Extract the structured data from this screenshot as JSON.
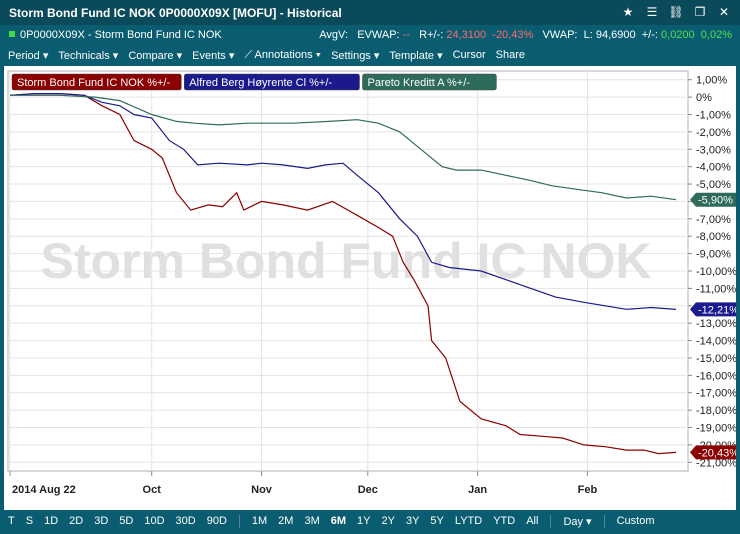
{
  "window": {
    "title": "Storm Bond Fund IC NOK 0P0000X09X [MOFU] - Historical",
    "icons": [
      "star-icon",
      "menu-icon",
      "unlink-icon",
      "restore-icon",
      "close-icon"
    ]
  },
  "infobar": {
    "instrument": "0P0000X09X - Storm Bond Fund IC NOK",
    "avgv_label": "AvgV:",
    "evwap_label": "EVWAP:",
    "evwap_value": "--",
    "r_label": "R+/-:",
    "r_value": "24,3100",
    "r_pct": "-20,43%",
    "vwap_label": "VWAP:",
    "l_label": "L:",
    "l_value": "94,6900",
    "chg_label": "+/-:",
    "chg_value": "0,0200",
    "chg_pct": "0,02%"
  },
  "menu": {
    "period": "Period",
    "technicals": "Technicals",
    "compare": "Compare",
    "events": "Events",
    "annotations": "Annotations",
    "settings": "Settings",
    "template": "Template",
    "cursor": "Cursor",
    "share": "Share"
  },
  "bottom": {
    "left": [
      "T",
      "S",
      "1D",
      "2D",
      "3D",
      "5D",
      "10D",
      "30D",
      "90D"
    ],
    "ranges": [
      "1M",
      "2M",
      "3M",
      "6M",
      "1Y",
      "2Y",
      "3Y",
      "5Y",
      "LYTD",
      "YTD",
      "All"
    ],
    "active": "6M",
    "interval": "Day",
    "custom": "Custom"
  },
  "colors": {
    "storm": "#8b0000",
    "alfred": "#1a1a8c",
    "pareto": "#2e6b5a"
  },
  "chart_data": {
    "type": "line",
    "watermark": "Storm Bond Fund IC NOK",
    "ylim": [
      -21.5,
      1.5
    ],
    "y_ticks": [
      "1,00%",
      "0%",
      "-1,00%",
      "-2,00%",
      "-3,00%",
      "-4,00%",
      "-5,00%",
      "-6,00%",
      "-7,00%",
      "-8,00%",
      "-9,00%",
      "-10,00%",
      "-11,00%",
      "-12,00%",
      "-13,00%",
      "-14,00%",
      "-15,00%",
      "-16,00%",
      "-17,00%",
      "-18,00%",
      "-19,00%",
      "-20,00%",
      "-21,00%"
    ],
    "x_labels": [
      "2014 Aug 22",
      "Oct",
      "Nov",
      "Dec",
      "Jan",
      "Feb"
    ],
    "x_label_dates": [
      "2014-08-22",
      "2014-10-01",
      "2014-11-01",
      "2014-12-01",
      "2015-01-01",
      "2015-02-01"
    ],
    "xlim": [
      "2014-08-22",
      "2015-02-26"
    ],
    "series": [
      {
        "name": "Storm Bond Fund IC NOK %+/-",
        "last_label": "-20,43%",
        "x": [
          "2014-08-22",
          "2014-08-29",
          "2014-09-05",
          "2014-09-12",
          "2014-09-17",
          "2014-09-22",
          "2014-09-26",
          "2014-10-01",
          "2014-10-04",
          "2014-10-08",
          "2014-10-12",
          "2014-10-17",
          "2014-10-21",
          "2014-10-25",
          "2014-10-27",
          "2014-11-01",
          "2014-11-07",
          "2014-11-14",
          "2014-11-21",
          "2014-11-28",
          "2014-12-04",
          "2014-12-08",
          "2014-12-11",
          "2014-12-14",
          "2014-12-18",
          "2014-12-19",
          "2014-12-23",
          "2014-12-27",
          "2015-01-02",
          "2015-01-09",
          "2015-01-13",
          "2015-01-19",
          "2015-01-25",
          "2015-01-31",
          "2015-02-06",
          "2015-02-12",
          "2015-02-17",
          "2015-02-21",
          "2015-02-26"
        ],
        "values": [
          0.1,
          0.2,
          0.2,
          0.1,
          -0.5,
          -1.0,
          -2.5,
          -3.0,
          -3.5,
          -5.5,
          -6.5,
          -6.2,
          -6.3,
          -5.5,
          -6.5,
          -6.0,
          -6.2,
          -6.5,
          -6.0,
          -6.8,
          -7.5,
          -8.0,
          -9.5,
          -10.5,
          -12.0,
          -14.0,
          -15.0,
          -17.5,
          -18.5,
          -18.9,
          -19.4,
          -19.5,
          -19.6,
          -20.0,
          -20.1,
          -20.3,
          -20.3,
          -20.5,
          -20.43
        ]
      },
      {
        "name": "Alfred Berg Høyrente Cl %+/-",
        "last_label": "-12,21%",
        "x": [
          "2014-08-22",
          "2014-08-29",
          "2014-09-05",
          "2014-09-12",
          "2014-09-17",
          "2014-09-22",
          "2014-09-26",
          "2014-10-01",
          "2014-10-06",
          "2014-10-10",
          "2014-10-14",
          "2014-10-20",
          "2014-10-28",
          "2014-11-01",
          "2014-11-07",
          "2014-11-14",
          "2014-11-19",
          "2014-11-24",
          "2014-11-28",
          "2014-12-04",
          "2014-12-10",
          "2014-12-15",
          "2014-12-19",
          "2014-12-24",
          "2015-01-02",
          "2015-01-09",
          "2015-01-16",
          "2015-01-23",
          "2015-01-31",
          "2015-02-06",
          "2015-02-12",
          "2015-02-19",
          "2015-02-26"
        ],
        "values": [
          0.1,
          0.2,
          0.2,
          0.1,
          -0.3,
          -0.5,
          -1.0,
          -1.2,
          -2.5,
          -3.0,
          -3.9,
          -3.8,
          -3.9,
          -3.8,
          -3.9,
          -4.1,
          -3.9,
          -3.8,
          -4.5,
          -5.5,
          -7.0,
          -8.0,
          -9.5,
          -9.8,
          -10.0,
          -10.5,
          -11.0,
          -11.5,
          -11.8,
          -12.0,
          -12.2,
          -12.1,
          -12.21
        ]
      },
      {
        "name": "Pareto Kreditt A %+/-",
        "last_label": "-5,90%",
        "x": [
          "2014-08-22",
          "2014-09-05",
          "2014-09-15",
          "2014-09-22",
          "2014-10-01",
          "2014-10-08",
          "2014-10-13",
          "2014-10-20",
          "2014-10-28",
          "2014-11-01",
          "2014-11-10",
          "2014-11-20",
          "2014-11-28",
          "2014-12-04",
          "2014-12-10",
          "2014-12-16",
          "2014-12-22",
          "2014-12-26",
          "2015-01-02",
          "2015-01-09",
          "2015-01-16",
          "2015-01-22",
          "2015-01-29",
          "2015-02-05",
          "2015-02-12",
          "2015-02-19",
          "2015-02-26"
        ],
        "values": [
          0.1,
          0.1,
          0.0,
          -0.2,
          -1.0,
          -1.4,
          -1.5,
          -1.6,
          -1.5,
          -1.5,
          -1.5,
          -1.4,
          -1.3,
          -1.5,
          -2.0,
          -3.0,
          -4.0,
          -4.2,
          -4.2,
          -4.5,
          -4.8,
          -5.1,
          -5.3,
          -5.5,
          -5.8,
          -5.7,
          -5.9
        ]
      }
    ]
  }
}
